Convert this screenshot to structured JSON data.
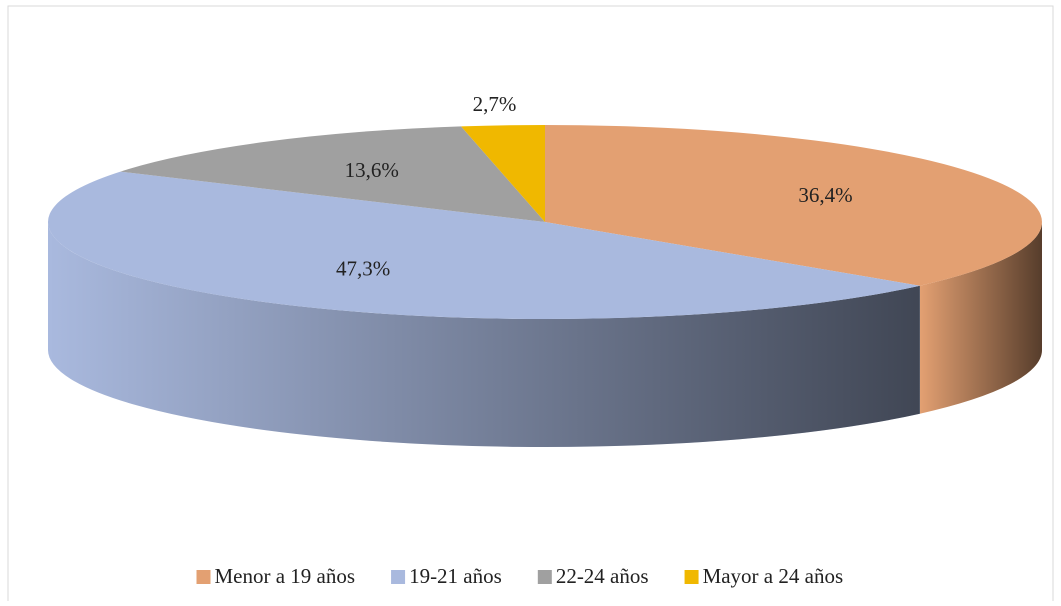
{
  "chart_data": {
    "type": "pie",
    "categories": [
      "Menor a 19 años",
      "19-21 años",
      "22-24 años",
      "Mayor a 24 años"
    ],
    "values": [
      36.4,
      47.3,
      13.6,
      2.7
    ],
    "value_labels": [
      "36,4%",
      "47,3%",
      "13,6%",
      "2,7%"
    ],
    "colors": [
      "#e3a072",
      "#a9b9de",
      "#a0a0a0",
      "#f0b800"
    ],
    "legend": "bottom"
  }
}
